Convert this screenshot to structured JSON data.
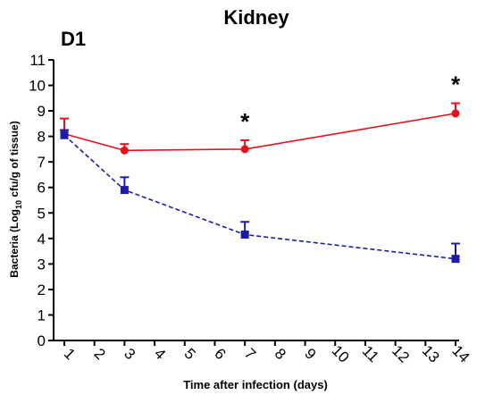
{
  "chart_data": {
    "type": "line",
    "title": "Kidney",
    "panel_label": "D1",
    "xlabel": "Time after infection (days)",
    "ylabel_parts": [
      "Bacteria (Log",
      "10",
      " cfu/g of tissue)"
    ],
    "xlim": [
      1,
      14
    ],
    "ylim": [
      0,
      11
    ],
    "x_ticks": [
      "1",
      "2",
      "3",
      "4",
      "5",
      "6",
      "7",
      "8",
      "9",
      "10",
      "11",
      "12",
      "13",
      "14"
    ],
    "y_ticks": [
      "0",
      "1",
      "2",
      "3",
      "4",
      "5",
      "6",
      "7",
      "8",
      "9",
      "10",
      "11"
    ],
    "grid": false,
    "legend": "none",
    "series": [
      {
        "color": "#e8111b",
        "line_style": "solid",
        "marker": "circle",
        "x": [
          1,
          3,
          7,
          14
        ],
        "y": [
          8.1,
          7.45,
          7.5,
          8.9
        ],
        "error": [
          0.6,
          0.25,
          0.35,
          0.4
        ]
      },
      {
        "color": "#1c1ca8",
        "line_style": "dashed",
        "marker": "square",
        "x": [
          1,
          3,
          7,
          14
        ],
        "y": [
          8.05,
          5.9,
          4.15,
          3.2
        ],
        "error": [
          0.2,
          0.5,
          0.5,
          0.6
        ]
      }
    ],
    "annotations": [
      {
        "text": "*",
        "x": 7
      },
      {
        "text": "*",
        "x": 14
      }
    ]
  }
}
